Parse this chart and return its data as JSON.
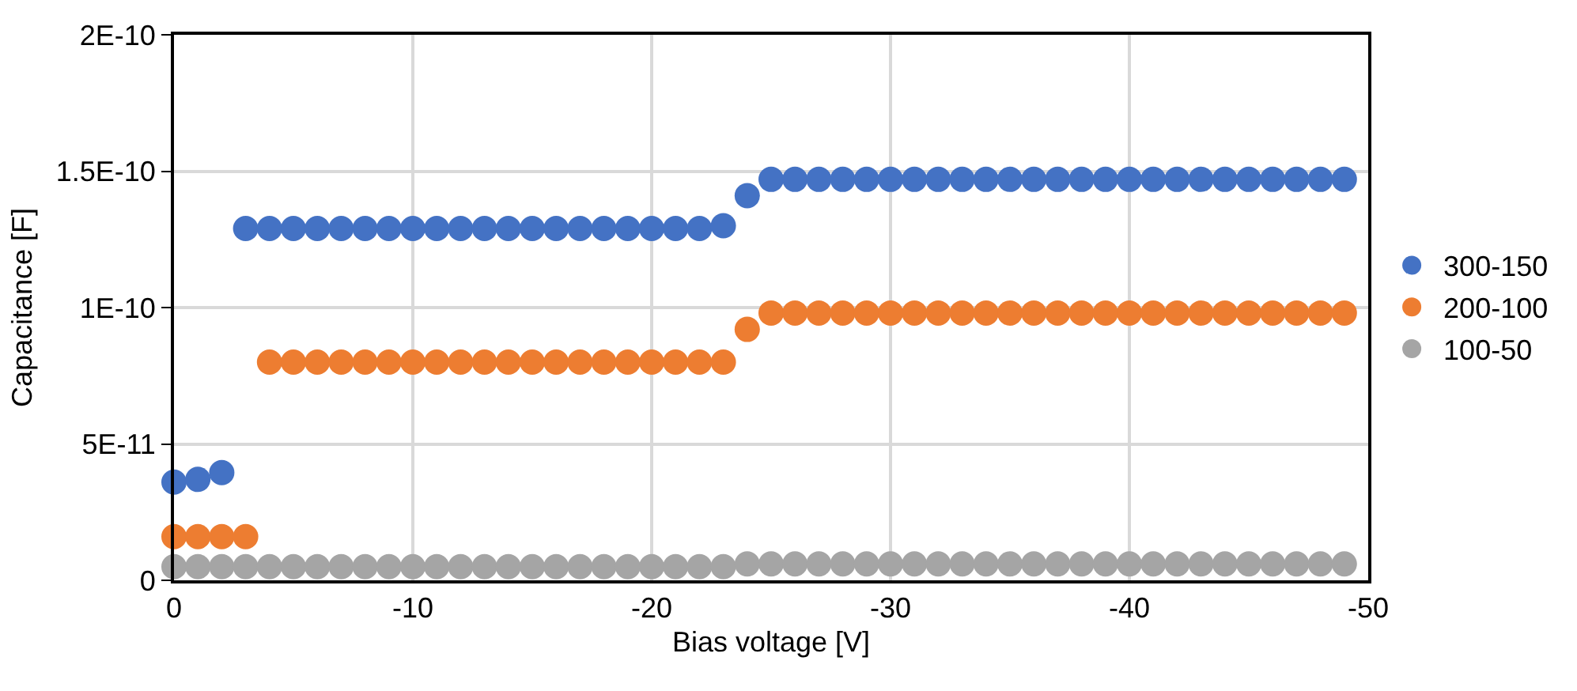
{
  "chart_data": {
    "type": "scatter",
    "xlabel": "Bias voltage [V]",
    "ylabel": "Capacitance [F]",
    "x": [
      0,
      -1,
      -2,
      -3,
      -4,
      -5,
      -6,
      -7,
      -8,
      -9,
      -10,
      -11,
      -12,
      -13,
      -14,
      -15,
      -16,
      -17,
      -18,
      -19,
      -20,
      -21,
      -22,
      -23,
      -24,
      -25,
      -26,
      -27,
      -28,
      -29,
      -30,
      -31,
      -32,
      -33,
      -34,
      -35,
      -36,
      -37,
      -38,
      -39,
      -40,
      -41,
      -42,
      -43,
      -44,
      -45,
      -46,
      -47,
      -48,
      -49
    ],
    "series": [
      {
        "name": "300-150",
        "color": "#4472c4",
        "values": [
          3.6e-11,
          3.7e-11,
          3.95e-11,
          1.29e-10,
          1.29e-10,
          1.29e-10,
          1.29e-10,
          1.29e-10,
          1.29e-10,
          1.29e-10,
          1.29e-10,
          1.29e-10,
          1.29e-10,
          1.29e-10,
          1.29e-10,
          1.29e-10,
          1.29e-10,
          1.29e-10,
          1.29e-10,
          1.29e-10,
          1.29e-10,
          1.29e-10,
          1.29e-10,
          1.3e-10,
          1.41e-10,
          1.47e-10,
          1.47e-10,
          1.47e-10,
          1.47e-10,
          1.47e-10,
          1.47e-10,
          1.47e-10,
          1.47e-10,
          1.47e-10,
          1.47e-10,
          1.47e-10,
          1.47e-10,
          1.47e-10,
          1.47e-10,
          1.47e-10,
          1.47e-10,
          1.47e-10,
          1.47e-10,
          1.47e-10,
          1.47e-10,
          1.47e-10,
          1.47e-10,
          1.47e-10,
          1.47e-10,
          1.47e-10
        ]
      },
      {
        "name": "200-100",
        "color": "#ed7d31",
        "values": [
          1.6e-11,
          1.6e-11,
          1.6e-11,
          1.6e-11,
          8e-11,
          8e-11,
          8e-11,
          8e-11,
          8e-11,
          8e-11,
          8e-11,
          8e-11,
          8e-11,
          8e-11,
          8e-11,
          8e-11,
          8e-11,
          8e-11,
          8e-11,
          8e-11,
          8e-11,
          8e-11,
          8e-11,
          8e-11,
          9.2e-11,
          9.8e-11,
          9.8e-11,
          9.8e-11,
          9.8e-11,
          9.8e-11,
          9.8e-11,
          9.8e-11,
          9.8e-11,
          9.8e-11,
          9.8e-11,
          9.8e-11,
          9.8e-11,
          9.8e-11,
          9.8e-11,
          9.8e-11,
          9.8e-11,
          9.8e-11,
          9.8e-11,
          9.8e-11,
          9.8e-11,
          9.8e-11,
          9.8e-11,
          9.8e-11,
          9.8e-11,
          9.8e-11
        ]
      },
      {
        "name": "100-50",
        "color": "#a5a5a5",
        "values": [
          5e-12,
          5e-12,
          5e-12,
          5e-12,
          5e-12,
          5e-12,
          5e-12,
          5e-12,
          5e-12,
          5e-12,
          5e-12,
          5e-12,
          5e-12,
          5e-12,
          5e-12,
          5e-12,
          5e-12,
          5e-12,
          5e-12,
          5e-12,
          5e-12,
          5e-12,
          5e-12,
          5e-12,
          6e-12,
          6e-12,
          6e-12,
          6e-12,
          6e-12,
          6e-12,
          6e-12,
          6e-12,
          6e-12,
          6e-12,
          6e-12,
          6e-12,
          6e-12,
          6e-12,
          6e-12,
          6e-12,
          6e-12,
          6e-12,
          6e-12,
          6e-12,
          6e-12,
          6e-12,
          6e-12,
          6e-12,
          6e-12,
          6e-12
        ]
      }
    ],
    "xlim": [
      0,
      -50
    ],
    "xticks": [
      0,
      -10,
      -20,
      -30,
      -40,
      -50
    ],
    "ylim": [
      0,
      2e-10
    ],
    "yticks": [
      0,
      {
        "value": 5e-11,
        "label": "5E-11"
      },
      {
        "value": 1e-10,
        "label": "1E-10"
      },
      {
        "value": 1.5e-10,
        "label": "1.5E-10"
      },
      {
        "value": 2e-10,
        "label": "2E-10"
      }
    ],
    "grid": true,
    "legend": "right",
    "marker": "circle"
  }
}
